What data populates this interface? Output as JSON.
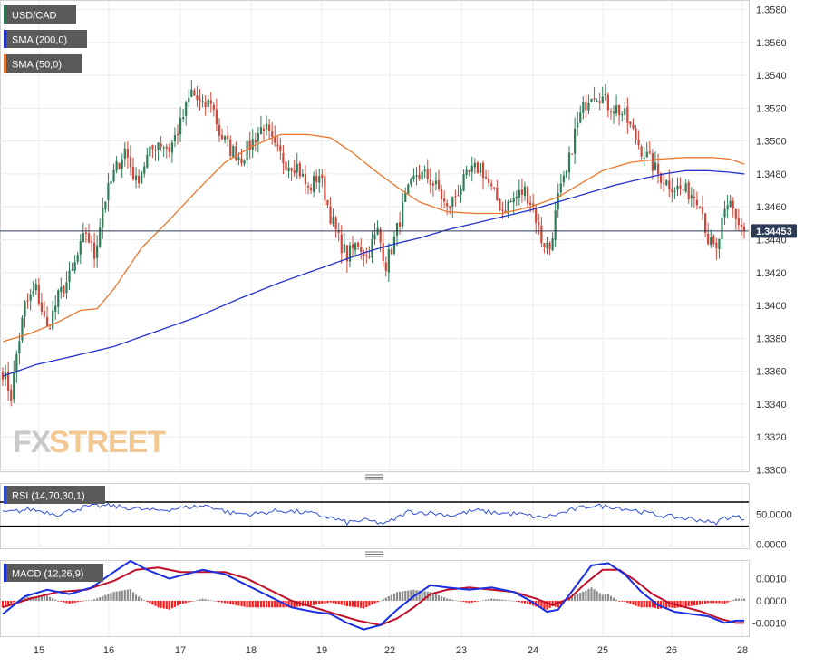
{
  "legend": {
    "symbol": "USD/CAD",
    "sma200": "SMA (200,0)",
    "sma50": "SMA (50,0)",
    "rsi": "RSI (14,70,30,1)",
    "macd": "MACD (12,26,9)"
  },
  "watermark": {
    "fx": "FX",
    "street": "STREET"
  },
  "colors": {
    "bull": "#2e7d57",
    "bear": "#d0463a",
    "sma200": "#2233cc",
    "sma50": "#e8772e",
    "rsi": "#2f4fd6",
    "macd": "#1a2fe0",
    "signal": "#c0102a",
    "hist_pos": "#8c8c8c",
    "hist_neg": "#ff1a1a",
    "price_badge": "#2b3a55",
    "legend_bg": "#5a5a5a"
  },
  "chart_data": {
    "type": "candlestick",
    "x_ticks": [
      "15",
      "16",
      "17",
      "18",
      "19",
      "22",
      "23",
      "24",
      "25",
      "26",
      "28"
    ],
    "price_axis": {
      "ylim": [
        1.33,
        1.358
      ],
      "ticks": [
        "1.3580",
        "1.3560",
        "1.3540",
        "1.3520",
        "1.3500",
        "1.3480",
        "1.3460",
        "1.3440",
        "1.3420",
        "1.3400",
        "1.3380",
        "1.3360",
        "1.3340",
        "1.3320",
        "1.3300"
      ]
    },
    "last_price": "1.34453",
    "last_price_value": 1.34453,
    "close_anchors": [
      [
        0,
        1.336
      ],
      [
        3,
        1.3345
      ],
      [
        5,
        1.337
      ],
      [
        8,
        1.34
      ],
      [
        12,
        1.341
      ],
      [
        16,
        1.3385
      ],
      [
        20,
        1.3405
      ],
      [
        25,
        1.342
      ],
      [
        30,
        1.3445
      ],
      [
        33,
        1.343
      ],
      [
        36,
        1.346
      ],
      [
        40,
        1.348
      ],
      [
        44,
        1.3495
      ],
      [
        48,
        1.3475
      ],
      [
        52,
        1.349
      ],
      [
        56,
        1.35
      ],
      [
        60,
        1.3495
      ],
      [
        64,
        1.351
      ],
      [
        68,
        1.353
      ],
      [
        72,
        1.352
      ],
      [
        75,
        1.3525
      ],
      [
        78,
        1.3505
      ],
      [
        82,
        1.3495
      ],
      [
        86,
        1.349
      ],
      [
        90,
        1.35
      ],
      [
        94,
        1.351
      ],
      [
        98,
        1.3495
      ],
      [
        102,
        1.3487
      ],
      [
        106,
        1.3485
      ],
      [
        110,
        1.347
      ],
      [
        114,
        1.348
      ],
      [
        118,
        1.3455
      ],
      [
        121,
        1.344
      ],
      [
        124,
        1.343
      ],
      [
        128,
        1.3438
      ],
      [
        131,
        1.343
      ],
      [
        135,
        1.3445
      ],
      [
        138,
        1.3425
      ],
      [
        141,
        1.344
      ],
      [
        145,
        1.3465
      ],
      [
        149,
        1.348
      ],
      [
        153,
        1.3478
      ],
      [
        157,
        1.347
      ],
      [
        160,
        1.3458
      ],
      [
        164,
        1.347
      ],
      [
        168,
        1.348
      ],
      [
        172,
        1.3485
      ],
      [
        176,
        1.347
      ],
      [
        180,
        1.3458
      ],
      [
        184,
        1.3465
      ],
      [
        188,
        1.347
      ],
      [
        191,
        1.346
      ],
      [
        194,
        1.344
      ],
      [
        197,
        1.3435
      ],
      [
        200,
        1.3465
      ],
      [
        203,
        1.348
      ],
      [
        206,
        1.3505
      ],
      [
        209,
        1.352
      ],
      [
        212,
        1.353
      ],
      [
        215,
        1.3528
      ],
      [
        218,
        1.3522
      ],
      [
        221,
        1.352
      ],
      [
        224,
        1.3515
      ],
      [
        227,
        1.3505
      ],
      [
        230,
        1.3495
      ],
      [
        233,
        1.3488
      ],
      [
        236,
        1.348
      ],
      [
        239,
        1.3475
      ],
      [
        242,
        1.3472
      ],
      [
        245,
        1.347
      ],
      [
        248,
        1.3468
      ],
      [
        251,
        1.3465
      ],
      [
        254,
        1.344
      ],
      [
        257,
        1.3432
      ],
      [
        259,
        1.345
      ],
      [
        262,
        1.3462
      ],
      [
        265,
        1.345
      ],
      [
        267,
        1.3445
      ]
    ],
    "sma50_anchors": [
      [
        0,
        1.3378
      ],
      [
        10,
        1.3383
      ],
      [
        20,
        1.339
      ],
      [
        28,
        1.3397
      ],
      [
        34,
        1.3398
      ],
      [
        40,
        1.341
      ],
      [
        50,
        1.3435
      ],
      [
        60,
        1.3452
      ],
      [
        70,
        1.347
      ],
      [
        80,
        1.3487
      ],
      [
        90,
        1.3497
      ],
      [
        100,
        1.3504
      ],
      [
        110,
        1.3504
      ],
      [
        118,
        1.3502
      ],
      [
        126,
        1.3493
      ],
      [
        134,
        1.3482
      ],
      [
        142,
        1.3472
      ],
      [
        150,
        1.3463
      ],
      [
        160,
        1.3457
      ],
      [
        170,
        1.3456
      ],
      [
        180,
        1.3456
      ],
      [
        190,
        1.346
      ],
      [
        200,
        1.3466
      ],
      [
        208,
        1.3474
      ],
      [
        216,
        1.3482
      ],
      [
        226,
        1.3487
      ],
      [
        236,
        1.3489
      ],
      [
        246,
        1.349
      ],
      [
        256,
        1.349
      ],
      [
        262,
        1.3489
      ],
      [
        267,
        1.3486
      ]
    ],
    "sma200_anchors": [
      [
        0,
        1.3357
      ],
      [
        12,
        1.3364
      ],
      [
        25,
        1.3369
      ],
      [
        40,
        1.3375
      ],
      [
        55,
        1.3384
      ],
      [
        70,
        1.3393
      ],
      [
        85,
        1.3404
      ],
      [
        100,
        1.3414
      ],
      [
        115,
        1.3423
      ],
      [
        130,
        1.3432
      ],
      [
        140,
        1.3437
      ],
      [
        150,
        1.3441
      ],
      [
        160,
        1.3446
      ],
      [
        170,
        1.345
      ],
      [
        180,
        1.3454
      ],
      [
        190,
        1.3458
      ],
      [
        200,
        1.3463
      ],
      [
        210,
        1.3468
      ],
      [
        220,
        1.3473
      ],
      [
        230,
        1.3477
      ],
      [
        238,
        1.348
      ],
      [
        246,
        1.3482
      ],
      [
        254,
        1.3482
      ],
      [
        262,
        1.3481
      ],
      [
        267,
        1.348
      ]
    ],
    "rsi": {
      "ylim": [
        -8,
        100
      ],
      "levels": [
        70,
        30
      ],
      "ticks": [
        "50.0000",
        "0.0000"
      ],
      "anchors": [
        [
          0,
          52
        ],
        [
          10,
          58
        ],
        [
          20,
          50
        ],
        [
          30,
          62
        ],
        [
          38,
          64
        ],
        [
          46,
          60
        ],
        [
          54,
          56
        ],
        [
          60,
          58
        ],
        [
          68,
          62
        ],
        [
          74,
          64
        ],
        [
          82,
          52
        ],
        [
          90,
          50
        ],
        [
          100,
          56
        ],
        [
          110,
          52
        ],
        [
          118,
          44
        ],
        [
          124,
          36
        ],
        [
          130,
          40
        ],
        [
          138,
          34
        ],
        [
          146,
          54
        ],
        [
          154,
          52
        ],
        [
          162,
          48
        ],
        [
          170,
          56
        ],
        [
          178,
          52
        ],
        [
          186,
          50
        ],
        [
          194,
          44
        ],
        [
          200,
          50
        ],
        [
          206,
          58
        ],
        [
          212,
          64
        ],
        [
          220,
          62
        ],
        [
          228,
          56
        ],
        [
          236,
          48
        ],
        [
          244,
          44
        ],
        [
          252,
          40
        ],
        [
          256,
          34
        ],
        [
          260,
          44
        ],
        [
          264,
          46
        ],
        [
          267,
          42
        ]
      ]
    },
    "macd": {
      "ylim": [
        -0.0016,
        0.0018
      ],
      "ticks": [
        "0.0010",
        "0.0000",
        "-0.0010"
      ],
      "macd_anchors": [
        [
          0,
          -0.0006
        ],
        [
          8,
          0.0002
        ],
        [
          16,
          0.0005
        ],
        [
          24,
          0.0003
        ],
        [
          32,
          0.0006
        ],
        [
          40,
          0.0013
        ],
        [
          46,
          0.0018
        ],
        [
          52,
          0.0014
        ],
        [
          60,
          0.001
        ],
        [
          66,
          0.0012
        ],
        [
          72,
          0.0014
        ],
        [
          80,
          0.0012
        ],
        [
          88,
          0.0007
        ],
        [
          96,
          0.0002
        ],
        [
          104,
          -0.0003
        ],
        [
          112,
          -0.0005
        ],
        [
          118,
          -0.0006
        ],
        [
          124,
          -0.001
        ],
        [
          130,
          -0.0013
        ],
        [
          136,
          -0.0011
        ],
        [
          142,
          -0.0004
        ],
        [
          148,
          0.0002
        ],
        [
          154,
          0.0007
        ],
        [
          160,
          0.0006
        ],
        [
          168,
          0.0005
        ],
        [
          176,
          0.0006
        ],
        [
          184,
          0.0004
        ],
        [
          190,
          0.0
        ],
        [
          196,
          -0.0005
        ],
        [
          200,
          -0.0004
        ],
        [
          206,
          0.0006
        ],
        [
          212,
          0.0016
        ],
        [
          218,
          0.0017
        ],
        [
          224,
          0.0012
        ],
        [
          230,
          0.0004
        ],
        [
          236,
          -0.0002
        ],
        [
          242,
          -0.0005
        ],
        [
          248,
          -0.0006
        ],
        [
          254,
          -0.0007
        ],
        [
          260,
          -0.001
        ],
        [
          264,
          -0.0009
        ],
        [
          267,
          -0.0009
        ]
      ],
      "signal_anchors": [
        [
          0,
          -0.0003
        ],
        [
          10,
          0.0001
        ],
        [
          20,
          0.0004
        ],
        [
          30,
          0.0005
        ],
        [
          40,
          0.0009
        ],
        [
          48,
          0.0014
        ],
        [
          56,
          0.0015
        ],
        [
          64,
          0.0013
        ],
        [
          72,
          0.0013
        ],
        [
          80,
          0.0013
        ],
        [
          88,
          0.001
        ],
        [
          96,
          0.0005
        ],
        [
          104,
          0.0
        ],
        [
          112,
          -0.0003
        ],
        [
          120,
          -0.0006
        ],
        [
          128,
          -0.0009
        ],
        [
          136,
          -0.0011
        ],
        [
          142,
          -0.0008
        ],
        [
          148,
          -0.0003
        ],
        [
          154,
          0.0003
        ],
        [
          160,
          0.0005
        ],
        [
          168,
          0.0006
        ],
        [
          176,
          0.0005
        ],
        [
          184,
          0.0004
        ],
        [
          192,
          0.0001
        ],
        [
          198,
          -0.0002
        ],
        [
          204,
          0.0001
        ],
        [
          210,
          0.0008
        ],
        [
          216,
          0.0014
        ],
        [
          222,
          0.0014
        ],
        [
          228,
          0.0009
        ],
        [
          234,
          0.0003
        ],
        [
          240,
          -0.0001
        ],
        [
          246,
          -0.0003
        ],
        [
          252,
          -0.0005
        ],
        [
          258,
          -0.0008
        ],
        [
          264,
          -0.001
        ],
        [
          267,
          -0.001
        ]
      ]
    }
  }
}
